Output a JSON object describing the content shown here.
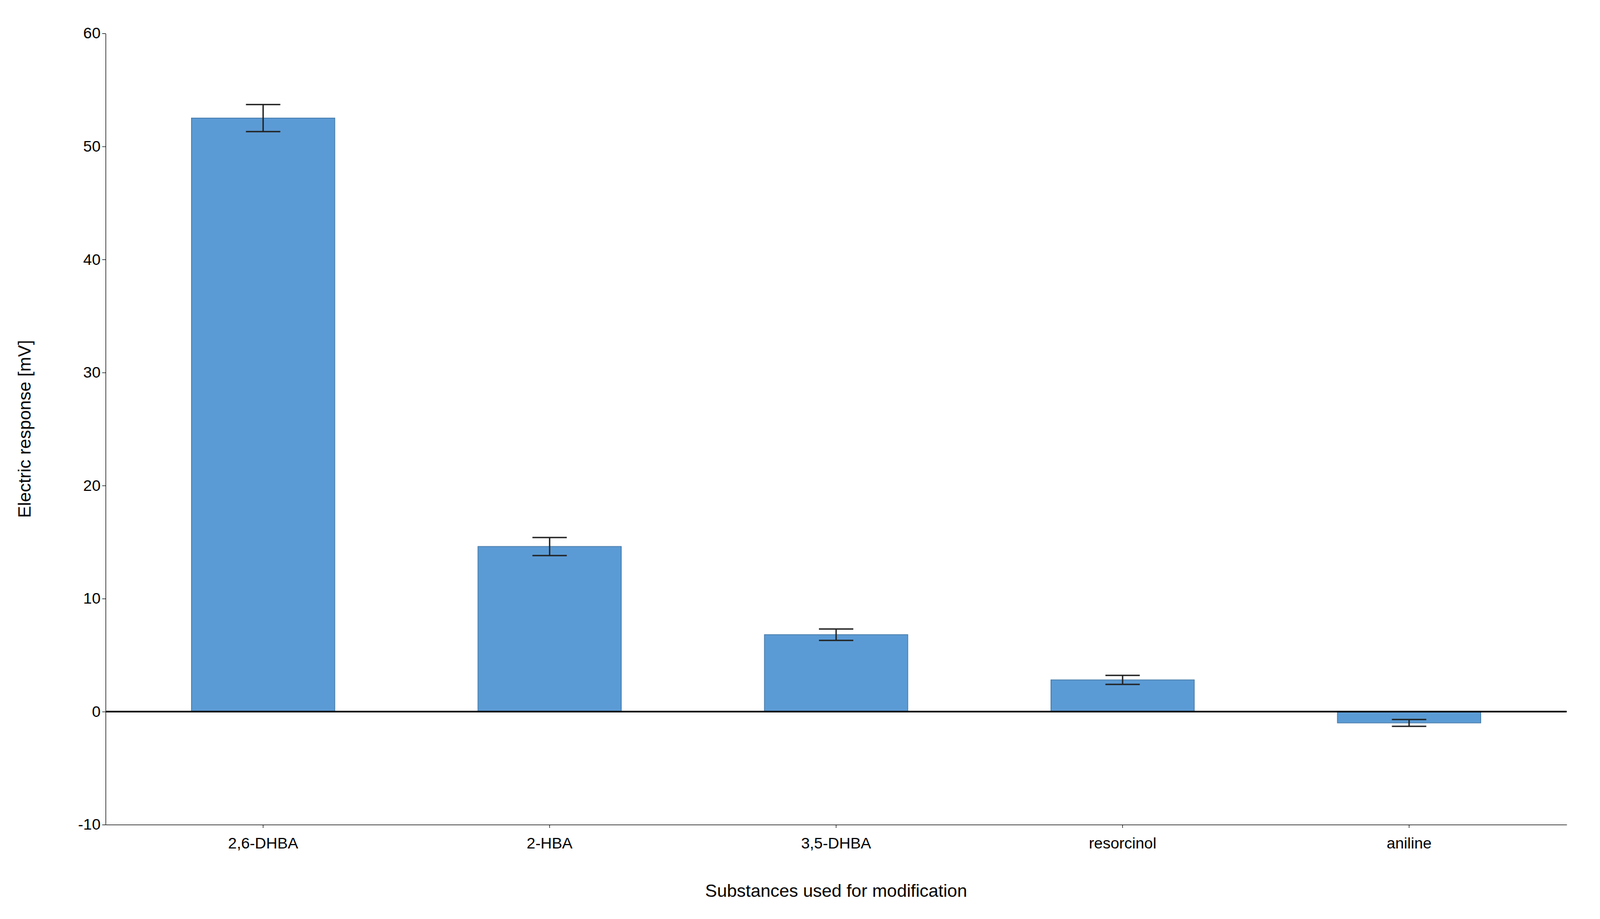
{
  "chart_data": {
    "type": "bar",
    "categories": [
      "2,6-DHBA",
      "2-HBA",
      "3,5-DHBA",
      "resorcinol",
      "aniline"
    ],
    "values": [
      52.5,
      14.6,
      6.8,
      2.8,
      -1.0
    ],
    "errors": [
      1.2,
      0.8,
      0.5,
      0.4,
      0.3
    ],
    "color": "#5B9BD5",
    "xlabel": "Substances used for modification",
    "ylabel": "Electric response [mV]",
    "ylim": [
      -10,
      60
    ],
    "yticks": [
      -10,
      0,
      10,
      20,
      30,
      40,
      50,
      60
    ],
    "grid": false
  }
}
